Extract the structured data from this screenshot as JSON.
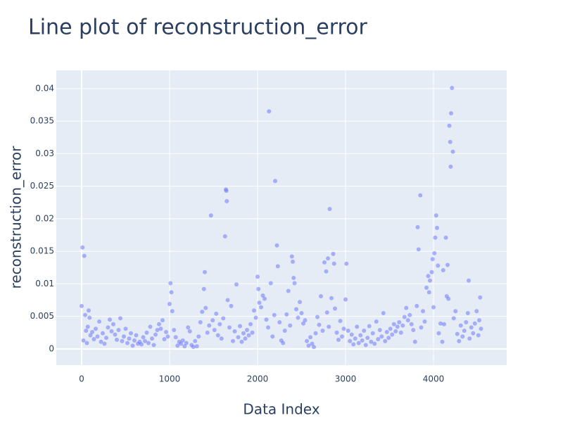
{
  "chart_data": {
    "type": "scatter",
    "title": "Line plot of reconstruction_error",
    "x_label": "Data Index",
    "y_label": "reconstruction_error",
    "color": "#636efa",
    "grid": true,
    "xlim": [
      -288,
      4832
    ],
    "ylim": [
      -0.0025,
      0.0428
    ],
    "xticks": [
      0,
      1000,
      2000,
      3000,
      4000
    ],
    "yticks": [
      0,
      0.005,
      0.01,
      0.015,
      0.02,
      0.025,
      0.03,
      0.035,
      0.04
    ],
    "x": [
      0,
      10,
      20,
      30,
      40,
      50,
      60,
      70,
      80,
      90,
      100,
      120,
      140,
      160,
      180,
      200,
      220,
      240,
      260,
      280,
      300,
      320,
      340,
      360,
      380,
      400,
      420,
      440,
      460,
      480,
      500,
      520,
      540,
      560,
      580,
      600,
      620,
      640,
      660,
      680,
      700,
      720,
      740,
      760,
      780,
      800,
      820,
      840,
      860,
      880,
      900,
      920,
      940,
      960,
      980,
      1000,
      1010,
      1020,
      1030,
      1050,
      1070,
      1090,
      1110,
      1130,
      1150,
      1170,
      1190,
      1210,
      1230,
      1250,
      1270,
      1290,
      1310,
      1330,
      1350,
      1370,
      1390,
      1400,
      1410,
      1430,
      1450,
      1470,
      1490,
      1510,
      1530,
      1550,
      1570,
      1590,
      1610,
      1630,
      1640,
      1645,
      1650,
      1660,
      1680,
      1700,
      1720,
      1740,
      1760,
      1780,
      1800,
      1820,
      1840,
      1860,
      1880,
      1900,
      1920,
      1940,
      1960,
      1980,
      2000,
      2010,
      2020,
      2040,
      2060,
      2080,
      2100,
      2120,
      2130,
      2150,
      2170,
      2190,
      2200,
      2220,
      2230,
      2250,
      2270,
      2290,
      2310,
      2330,
      2350,
      2370,
      2390,
      2400,
      2410,
      2420,
      2440,
      2460,
      2480,
      2500,
      2520,
      2540,
      2560,
      2580,
      2600,
      2620,
      2640,
      2660,
      2680,
      2700,
      2720,
      2740,
      2760,
      2780,
      2790,
      2800,
      2810,
      2820,
      2840,
      2860,
      2870,
      2880,
      2900,
      2920,
      2940,
      2960,
      2980,
      3000,
      3010,
      3030,
      3050,
      3070,
      3090,
      3110,
      3130,
      3150,
      3170,
      3190,
      3210,
      3230,
      3250,
      3270,
      3290,
      3310,
      3330,
      3350,
      3370,
      3390,
      3410,
      3430,
      3450,
      3470,
      3490,
      3510,
      3530,
      3550,
      3570,
      3590,
      3610,
      3630,
      3650,
      3670,
      3690,
      3710,
      3730,
      3750,
      3770,
      3790,
      3810,
      3820,
      3830,
      3850,
      3860,
      3880,
      3900,
      3920,
      3940,
      3950,
      3960,
      3980,
      3990,
      4000,
      4010,
      4020,
      4030,
      4040,
      4050,
      4060,
      4080,
      4100,
      4110,
      4120,
      4140,
      4150,
      4160,
      4170,
      4180,
      4190,
      4195,
      4200,
      4210,
      4220,
      4230,
      4250,
      4270,
      4290,
      4310,
      4330,
      4350,
      4370,
      4390,
      4400,
      4410,
      4430,
      4450,
      4470,
      4490,
      4510,
      4520,
      4530,
      4540
    ],
    "values": [
      0.0066,
      0.0156,
      0.0013,
      0.0143,
      0.0052,
      0.0028,
      0.0009,
      0.0034,
      0.0059,
      0.0048,
      0.0021,
      0.0026,
      0.0015,
      0.0031,
      0.0019,
      0.0042,
      0.0011,
      0.0024,
      0.0008,
      0.0017,
      0.0033,
      0.0045,
      0.0027,
      0.0038,
      0.0022,
      0.0014,
      0.0029,
      0.0047,
      0.0012,
      0.0019,
      0.0031,
      0.0009,
      0.0016,
      0.0024,
      0.0005,
      0.0013,
      0.0021,
      0.0008,
      0.0011,
      0.0007,
      0.0018,
      0.0012,
      0.0025,
      0.0009,
      0.0034,
      0.0016,
      0.0006,
      0.0022,
      0.0029,
      0.0038,
      0.0031,
      0.0044,
      0.0015,
      0.0026,
      0.0019,
      0.0069,
      0.0101,
      0.0087,
      0.0058,
      0.0029,
      0.0018,
      0.0005,
      0.0011,
      0.0008,
      0.0013,
      0.0004,
      0.0009,
      0.0033,
      0.0027,
      0.0006,
      0.0003,
      0.0012,
      0.0004,
      0.0019,
      0.0041,
      0.0057,
      0.0092,
      0.0118,
      0.0063,
      0.0025,
      0.0036,
      0.0205,
      0.0044,
      0.0029,
      0.0054,
      0.0021,
      0.0038,
      0.0016,
      0.0047,
      0.0173,
      0.0245,
      0.0243,
      0.0227,
      0.0075,
      0.0033,
      0.0066,
      0.0012,
      0.0027,
      0.0099,
      0.0018,
      0.0035,
      0.0011,
      0.0024,
      0.0016,
      0.0029,
      0.0021,
      0.0038,
      0.0025,
      0.0059,
      0.0048,
      0.0111,
      0.0092,
      0.0071,
      0.0064,
      0.0082,
      0.0077,
      0.0045,
      0.0033,
      0.0365,
      0.0101,
      0.0019,
      0.0052,
      0.0258,
      0.0159,
      0.0127,
      0.0041,
      0.0013,
      0.0009,
      0.0028,
      0.0053,
      0.0089,
      0.0036,
      0.0142,
      0.0134,
      0.0109,
      0.0101,
      0.0061,
      0.0048,
      0.0072,
      0.0055,
      0.0039,
      0.0044,
      0.0012,
      0.0005,
      0.0018,
      0.0008,
      0.0003,
      0.0024,
      0.0049,
      0.0037,
      0.0081,
      0.0028,
      0.0133,
      0.0119,
      0.0056,
      0.0139,
      0.0034,
      0.0215,
      0.0078,
      0.0146,
      0.0131,
      0.0062,
      0.0025,
      0.0014,
      0.0043,
      0.0019,
      0.0031,
      0.0076,
      0.0131,
      0.0028,
      0.0012,
      0.0022,
      0.0007,
      0.0016,
      0.0034,
      0.0009,
      0.0021,
      0.0013,
      0.0028,
      0.0006,
      0.0017,
      0.0035,
      0.0011,
      0.0024,
      0.0008,
      0.0042,
      0.0015,
      0.0029,
      0.0019,
      0.0055,
      0.0012,
      0.0026,
      0.0017,
      0.0031,
      0.0022,
      0.0038,
      0.0027,
      0.0034,
      0.0041,
      0.0025,
      0.0036,
      0.0049,
      0.0063,
      0.0044,
      0.0052,
      0.0038,
      0.0029,
      0.0011,
      0.0066,
      0.0187,
      0.0153,
      0.0236,
      0.0033,
      0.0058,
      0.0042,
      0.0094,
      0.0112,
      0.0087,
      0.0105,
      0.0118,
      0.0138,
      0.0064,
      0.0147,
      0.0171,
      0.0205,
      0.0186,
      0.0128,
      0.0024,
      0.0039,
      0.0011,
      0.0121,
      0.0038,
      0.0171,
      0.0081,
      0.0129,
      0.0077,
      0.0343,
      0.0318,
      0.028,
      0.0362,
      0.0401,
      0.0303,
      0.0047,
      0.0058,
      0.0023,
      0.0012,
      0.0036,
      0.0019,
      0.0028,
      0.0041,
      0.0055,
      0.0105,
      0.0016,
      0.0033,
      0.0024,
      0.0039,
      0.0058,
      0.0021,
      0.0044,
      0.0079,
      0.0031
    ]
  }
}
